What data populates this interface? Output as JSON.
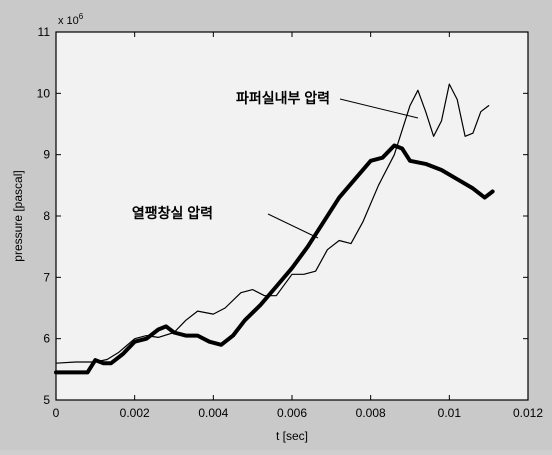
{
  "chart_data": {
    "type": "line",
    "xlabel": "t [sec]",
    "ylabel": "pressure [pascal]",
    "exponent_label": "x 10",
    "exponent_power": "6",
    "xlim": [
      0,
      0.012
    ],
    "ylim": [
      5,
      11
    ],
    "xticks": [
      {
        "v": 0,
        "label": "0"
      },
      {
        "v": 0.002,
        "label": "0.002"
      },
      {
        "v": 0.004,
        "label": "0.004"
      },
      {
        "v": 0.006,
        "label": "0.006"
      },
      {
        "v": 0.008,
        "label": "0.008"
      },
      {
        "v": 0.01,
        "label": "0.01"
      },
      {
        "v": 0.012,
        "label": "0.012"
      }
    ],
    "yticks": [
      {
        "v": 5,
        "label": "5"
      },
      {
        "v": 6,
        "label": "6"
      },
      {
        "v": 7,
        "label": "7"
      },
      {
        "v": 8,
        "label": "8"
      },
      {
        "v": 9,
        "label": "9"
      },
      {
        "v": 10,
        "label": "10"
      },
      {
        "v": 11,
        "label": "11"
      }
    ],
    "grid": false,
    "series": [
      {
        "name": "파퍼실내부 압력",
        "style": "thin",
        "color": "#000000",
        "x": [
          0,
          0.0005,
          0.001,
          0.0013,
          0.0016,
          0.002,
          0.0023,
          0.0026,
          0.003,
          0.0033,
          0.0036,
          0.004,
          0.0043,
          0.0047,
          0.005,
          0.0053,
          0.0056,
          0.006,
          0.0063,
          0.0066,
          0.0069,
          0.0072,
          0.0075,
          0.0078,
          0.0082,
          0.0086,
          0.009,
          0.0092,
          0.0094,
          0.0096,
          0.0098,
          0.01,
          0.0102,
          0.0104,
          0.0106,
          0.0108,
          0.011
        ],
        "y": [
          5.6,
          5.62,
          5.62,
          5.66,
          5.78,
          6.0,
          6.05,
          6.02,
          6.1,
          6.3,
          6.45,
          6.4,
          6.5,
          6.75,
          6.8,
          6.7,
          6.7,
          7.05,
          7.05,
          7.1,
          7.45,
          7.6,
          7.55,
          7.9,
          8.5,
          9.0,
          9.8,
          10.05,
          9.7,
          9.3,
          9.55,
          10.15,
          9.9,
          9.3,
          9.35,
          9.7,
          9.8
        ]
      },
      {
        "name": "열팽창실 압력",
        "style": "thick",
        "color": "#000000",
        "x": [
          0,
          0.0005,
          0.0008,
          0.001,
          0.0012,
          0.0014,
          0.0017,
          0.002,
          0.0023,
          0.0026,
          0.0028,
          0.003,
          0.0033,
          0.0036,
          0.0039,
          0.0042,
          0.0045,
          0.0048,
          0.0052,
          0.0056,
          0.006,
          0.0064,
          0.0068,
          0.0072,
          0.0076,
          0.008,
          0.0083,
          0.0086,
          0.0088,
          0.009,
          0.0094,
          0.0098,
          0.0102,
          0.0106,
          0.0109,
          0.0111
        ],
        "y": [
          5.45,
          5.45,
          5.45,
          5.65,
          5.6,
          5.6,
          5.75,
          5.95,
          6.0,
          6.15,
          6.2,
          6.1,
          6.05,
          6.05,
          5.95,
          5.9,
          6.05,
          6.3,
          6.55,
          6.85,
          7.15,
          7.5,
          7.9,
          8.3,
          8.6,
          8.9,
          8.95,
          9.15,
          9.1,
          8.9,
          8.85,
          8.75,
          8.6,
          8.45,
          8.3,
          8.4
        ]
      }
    ],
    "annotations": [
      {
        "text": "파퍼실내부 압력",
        "series": 0
      },
      {
        "text": "열팽창실 압력",
        "series": 1
      }
    ]
  }
}
